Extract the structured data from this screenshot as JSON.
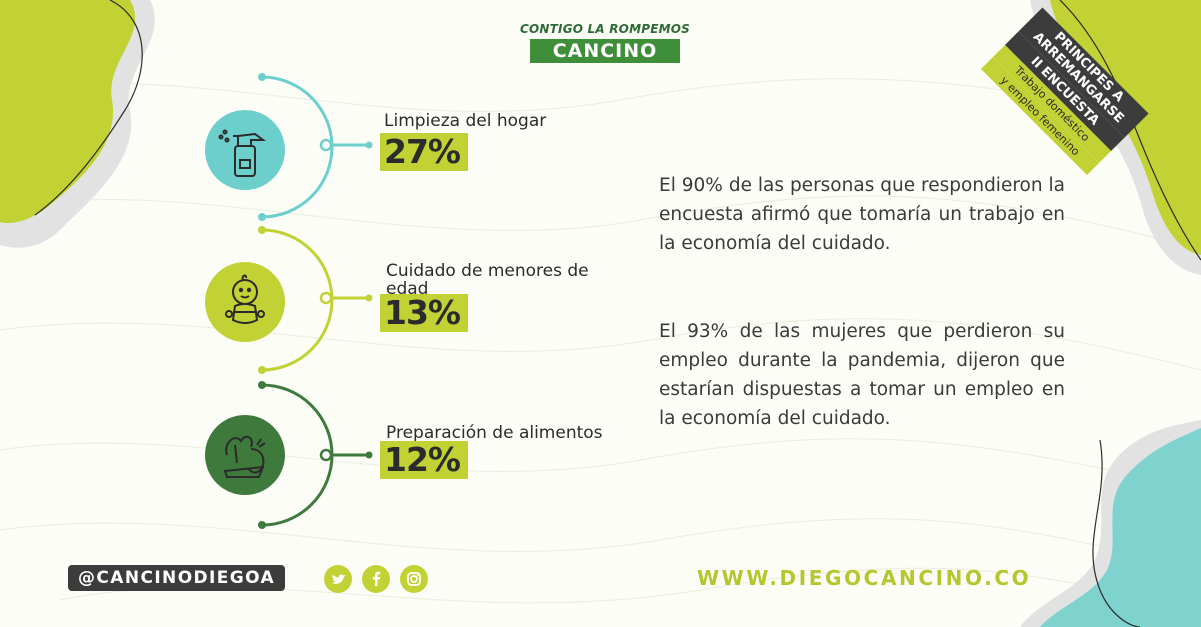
{
  "logo": {
    "line1": "CONTIGO LA ROMPEMOS",
    "line2": "CANCINO"
  },
  "badge": {
    "line1": "PRINCIPES A ARREMANGARSE",
    "line2": "II ENCUESTA",
    "line3": "Trabajo doméstico",
    "line4": "y empleo femenino"
  },
  "items": [
    {
      "label": "Limpieza del hogar",
      "percent": "27%",
      "icon": "spray-bottle-icon",
      "color": "#6ccfcc"
    },
    {
      "label": "Cuidado de menores de edad",
      "percent": "13%",
      "icon": "baby-icon",
      "color": "#c2d234"
    },
    {
      "label": "Preparación de alimentos",
      "percent": "12%",
      "icon": "vegetables-icon",
      "color": "#3e7a3c"
    }
  ],
  "paragraphs": [
    "El 90% de las personas que respondieron la encuesta afirmó que tomaría un trabajo en la economía del cuidado.",
    "El 93% de las mujeres que perdieron su empleo durante la pandemia, dijeron que estarían dispuestas a tomar un empleo en la economía del cuidado."
  ],
  "footer": {
    "handle": "@CANCINODIEGOA",
    "social": [
      "twitter-icon",
      "facebook-icon",
      "instagram-icon"
    ],
    "website": "WWW.DIEGOCANCINO.CO"
  },
  "colors": {
    "lime": "#c2d234",
    "teal": "#6ccfcc",
    "green": "#3e7a3c",
    "dark": "#3c3c3c"
  }
}
